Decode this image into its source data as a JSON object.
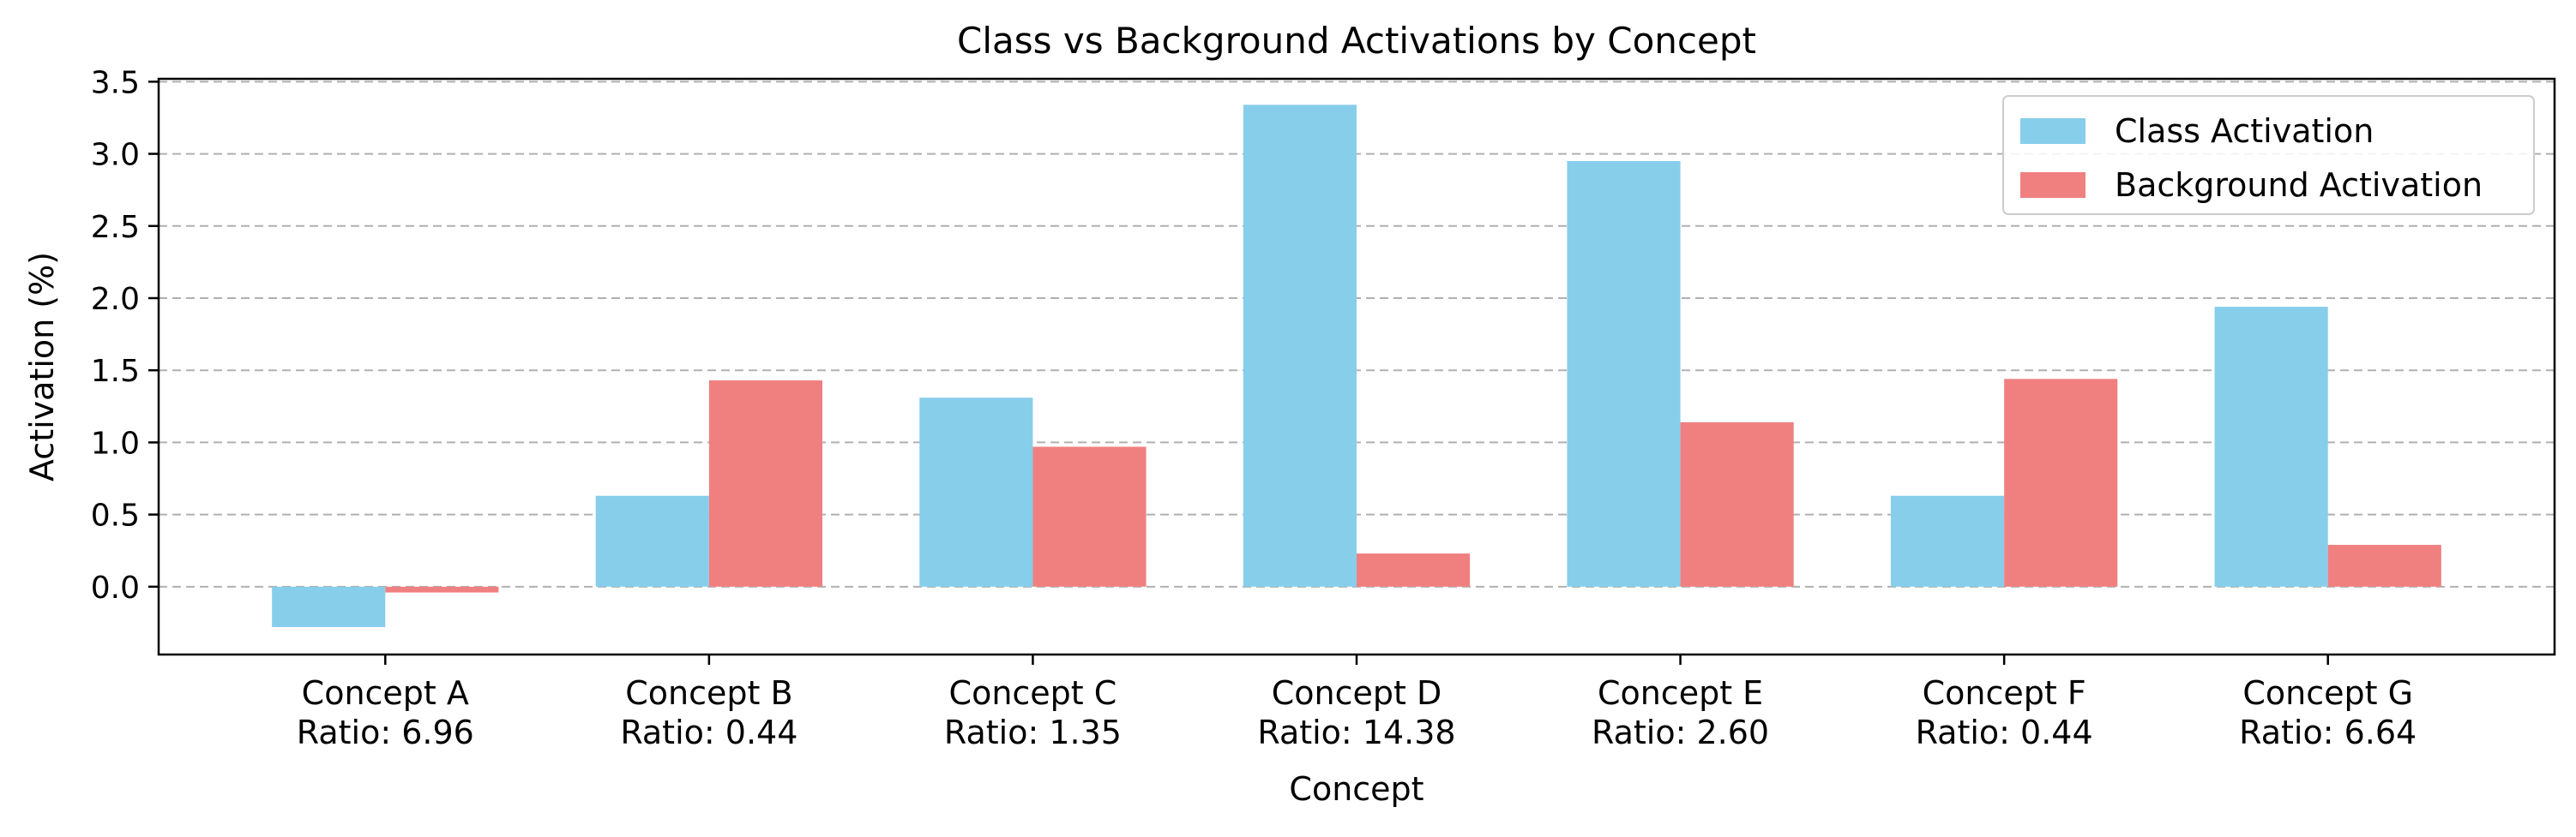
{
  "chart_data": {
    "type": "bar",
    "title": "Class vs Background Activations by Concept",
    "xlabel": "Concept",
    "ylabel": "Activation (%)",
    "categories": [
      "Concept A\nRatio: 6.96",
      "Concept B\nRatio: 0.44",
      "Concept C\nRatio: 1.35",
      "Concept D\nRatio: 14.38",
      "Concept E\nRatio: 2.60",
      "Concept F\nRatio: 0.44",
      "Concept G\nRatio: 6.64"
    ],
    "series": [
      {
        "name": "Class Activation",
        "color": "#87CEEB",
        "values": [
          -0.28,
          0.63,
          1.31,
          3.34,
          2.95,
          0.63,
          1.94
        ]
      },
      {
        "name": "Background Activation",
        "color": "#F08080",
        "values": [
          -0.04,
          1.43,
          0.97,
          0.23,
          1.14,
          1.44,
          0.29
        ]
      }
    ],
    "ylim": [
      -0.47,
      3.52
    ],
    "yticks": [
      0.0,
      0.5,
      1.0,
      1.5,
      2.0,
      2.5,
      3.0,
      3.5
    ],
    "ytick_labels": [
      "0.0",
      "0.5",
      "1.0",
      "1.5",
      "2.0",
      "2.5",
      "3.0",
      "3.5"
    ],
    "grid": "y-dashed",
    "legend_position": "top-right"
  }
}
